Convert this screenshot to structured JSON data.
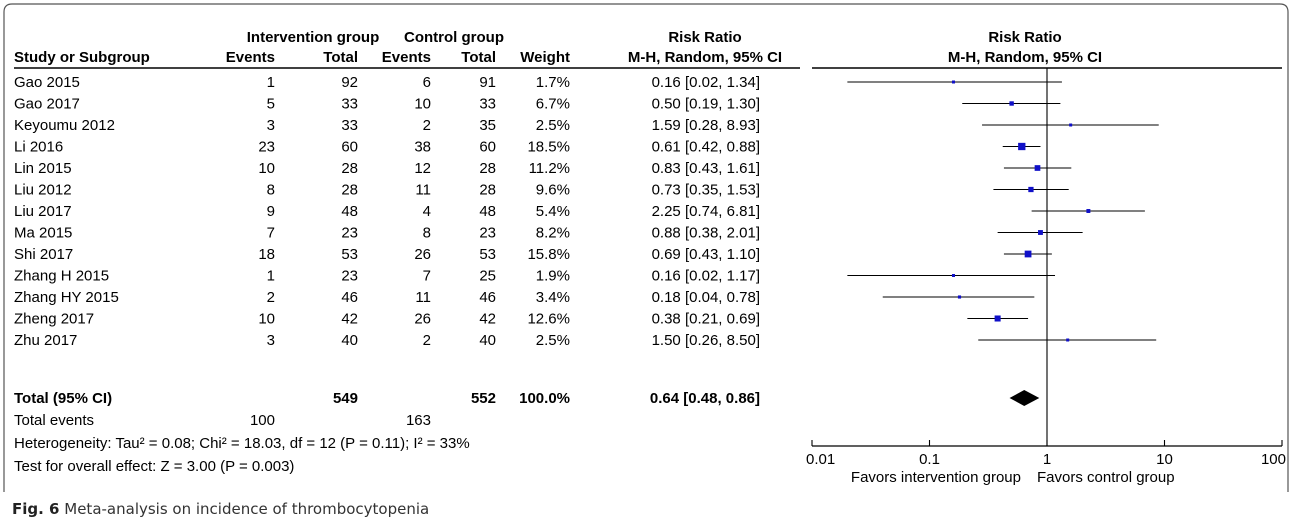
{
  "caption": {
    "label": "Fig. 6",
    "text": "Meta-analysis on incidence of thrombocytopenia"
  },
  "headers": {
    "intervention_group": "Intervention group",
    "control_group": "Control group",
    "risk_ratio": "Risk Ratio",
    "study": "Study or Subgroup",
    "events": "Events",
    "total": "Total",
    "weight": "Weight",
    "method": "M-H, Random, 95% CI",
    "plot_title": "Risk Ratio",
    "plot_method": "M-H, Random, 95% CI"
  },
  "summary": {
    "label": "Total (95% CI)",
    "int_total": "549",
    "ctl_total": "552",
    "weight": "100.0%",
    "ci_text": "0.64 [0.48, 0.86]",
    "events_label": "Total events",
    "int_events": "100",
    "ctl_events": "163",
    "heterogeneity": "Heterogeneity: Tau² = 0.08; Chi² = 18.03, df = 12 (P = 0.11); I² = 33%",
    "overall_effect": "Test for overall effect: Z = 3.00 (P = 0.003)"
  },
  "axis": {
    "ticks": [
      "0.01",
      "0.1",
      "1",
      "10",
      "100"
    ],
    "left_label": "Favors intervention group",
    "right_label": "Favors control group"
  },
  "chart_data": {
    "type": "forest",
    "xscale": "log",
    "xlim": [
      0.01,
      100
    ],
    "reference_line": 1,
    "marker_color": "#1010c8",
    "studies": [
      {
        "name": "Gao 2015",
        "int_events": 1,
        "int_total": 92,
        "ctl_events": 6,
        "ctl_total": 91,
        "weight": "1.7%",
        "w": 1.7,
        "rr": 0.16,
        "lo": 0.02,
        "hi": 1.34,
        "ci_text": "0.16 [0.02, 1.34]"
      },
      {
        "name": "Gao 2017",
        "int_events": 5,
        "int_total": 33,
        "ctl_events": 10,
        "ctl_total": 33,
        "weight": "6.7%",
        "w": 6.7,
        "rr": 0.5,
        "lo": 0.19,
        "hi": 1.3,
        "ci_text": "0.50 [0.19, 1.30]"
      },
      {
        "name": "Keyoumu 2012",
        "int_events": 3,
        "int_total": 33,
        "ctl_events": 2,
        "ctl_total": 35,
        "weight": "2.5%",
        "w": 2.5,
        "rr": 1.59,
        "lo": 0.28,
        "hi": 8.93,
        "ci_text": "1.59 [0.28, 8.93]"
      },
      {
        "name": "Li 2016",
        "int_events": 23,
        "int_total": 60,
        "ctl_events": 38,
        "ctl_total": 60,
        "weight": "18.5%",
        "w": 18.5,
        "rr": 0.61,
        "lo": 0.42,
        "hi": 0.88,
        "ci_text": "0.61 [0.42, 0.88]"
      },
      {
        "name": "Lin 2015",
        "int_events": 10,
        "int_total": 28,
        "ctl_events": 12,
        "ctl_total": 28,
        "weight": "11.2%",
        "w": 11.2,
        "rr": 0.83,
        "lo": 0.43,
        "hi": 1.61,
        "ci_text": "0.83 [0.43, 1.61]"
      },
      {
        "name": "Liu 2012",
        "int_events": 8,
        "int_total": 28,
        "ctl_events": 11,
        "ctl_total": 28,
        "weight": "9.6%",
        "w": 9.6,
        "rr": 0.73,
        "lo": 0.35,
        "hi": 1.53,
        "ci_text": "0.73 [0.35, 1.53]"
      },
      {
        "name": "Liu 2017",
        "int_events": 9,
        "int_total": 48,
        "ctl_events": 4,
        "ctl_total": 48,
        "weight": "5.4%",
        "w": 5.4,
        "rr": 2.25,
        "lo": 0.74,
        "hi": 6.81,
        "ci_text": "2.25 [0.74, 6.81]"
      },
      {
        "name": "Ma 2015",
        "int_events": 7,
        "int_total": 23,
        "ctl_events": 8,
        "ctl_total": 23,
        "weight": "8.2%",
        "w": 8.2,
        "rr": 0.88,
        "lo": 0.38,
        "hi": 2.01,
        "ci_text": "0.88 [0.38, 2.01]"
      },
      {
        "name": "Shi 2017",
        "int_events": 18,
        "int_total": 53,
        "ctl_events": 26,
        "ctl_total": 53,
        "weight": "15.8%",
        "w": 15.8,
        "rr": 0.69,
        "lo": 0.43,
        "hi": 1.1,
        "ci_text": "0.69 [0.43, 1.10]"
      },
      {
        "name": "Zhang H 2015",
        "int_events": 1,
        "int_total": 23,
        "ctl_events": 7,
        "ctl_total": 25,
        "weight": "1.9%",
        "w": 1.9,
        "rr": 0.16,
        "lo": 0.02,
        "hi": 1.17,
        "ci_text": "0.16 [0.02, 1.17]"
      },
      {
        "name": "Zhang HY 2015",
        "int_events": 2,
        "int_total": 46,
        "ctl_events": 11,
        "ctl_total": 46,
        "weight": "3.4%",
        "w": 3.4,
        "rr": 0.18,
        "lo": 0.04,
        "hi": 0.78,
        "ci_text": "0.18 [0.04, 0.78]"
      },
      {
        "name": "Zheng 2017",
        "int_events": 10,
        "int_total": 42,
        "ctl_events": 26,
        "ctl_total": 42,
        "weight": "12.6%",
        "w": 12.6,
        "rr": 0.38,
        "lo": 0.21,
        "hi": 0.69,
        "ci_text": "0.38 [0.21, 0.69]"
      },
      {
        "name": "Zhu 2017",
        "int_events": 3,
        "int_total": 40,
        "ctl_events": 2,
        "ctl_total": 40,
        "weight": "2.5%",
        "w": 2.5,
        "rr": 1.5,
        "lo": 0.26,
        "hi": 8.5,
        "ci_text": "1.50 [0.26, 8.50]"
      }
    ],
    "pooled": {
      "rr": 0.64,
      "lo": 0.48,
      "hi": 0.86
    }
  }
}
